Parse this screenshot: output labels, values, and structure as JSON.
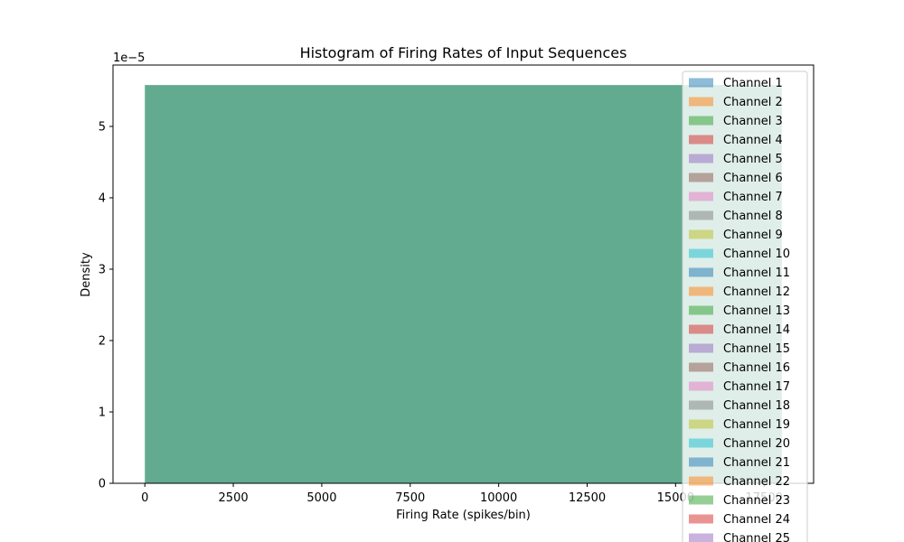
{
  "chart_data": {
    "type": "bar",
    "title": "Histogram of Firing Rates of Input Sequences",
    "xlabel": "Firing Rate (spikes/bin)",
    "ylabel": "Density",
    "y_offset_text": "1e−5",
    "xlim": [
      -900,
      18900
    ],
    "ylim": [
      0,
      5.86
    ],
    "x_ticks": [
      {
        "value": 0,
        "label": "0"
      },
      {
        "value": 2500,
        "label": "2500"
      },
      {
        "value": 5000,
        "label": "5000"
      },
      {
        "value": 7500,
        "label": "7500"
      },
      {
        "value": 10000,
        "label": "10000"
      },
      {
        "value": 12500,
        "label": "12500"
      },
      {
        "value": 15000,
        "label": "15000"
      },
      {
        "value": 17500,
        "label": "17500"
      }
    ],
    "y_ticks": [
      {
        "value": 0,
        "label": "0"
      },
      {
        "value": 1,
        "label": "1"
      },
      {
        "value": 2,
        "label": "2"
      },
      {
        "value": 3,
        "label": "3"
      },
      {
        "value": 4,
        "label": "4"
      },
      {
        "value": 5,
        "label": "5"
      }
    ],
    "bins": [
      {
        "x_start": 0,
        "x_end": 18000,
        "density": 5.58,
        "color": "#62ab91"
      }
    ],
    "legend_placement": "upper-right",
    "legend": [
      {
        "label": "Channel 1",
        "color": "#1f77b4"
      },
      {
        "label": "Channel 2",
        "color": "#ff7f0e"
      },
      {
        "label": "Channel 3",
        "color": "#2ca02c"
      },
      {
        "label": "Channel 4",
        "color": "#d62728"
      },
      {
        "label": "Channel 5",
        "color": "#9467bd"
      },
      {
        "label": "Channel 6",
        "color": "#8c564b"
      },
      {
        "label": "Channel 7",
        "color": "#e377c2"
      },
      {
        "label": "Channel 8",
        "color": "#7f7f7f"
      },
      {
        "label": "Channel 9",
        "color": "#bcbd22"
      },
      {
        "label": "Channel 10",
        "color": "#17becf"
      },
      {
        "label": "Channel 11",
        "color": "#1f77b4"
      },
      {
        "label": "Channel 12",
        "color": "#ff7f0e"
      },
      {
        "label": "Channel 13",
        "color": "#2ca02c"
      },
      {
        "label": "Channel 14",
        "color": "#d62728"
      },
      {
        "label": "Channel 15",
        "color": "#9467bd"
      },
      {
        "label": "Channel 16",
        "color": "#8c564b"
      },
      {
        "label": "Channel 17",
        "color": "#e377c2"
      },
      {
        "label": "Channel 18",
        "color": "#7f7f7f"
      },
      {
        "label": "Channel 19",
        "color": "#bcbd22"
      },
      {
        "label": "Channel 20",
        "color": "#17becf"
      },
      {
        "label": "Channel 21",
        "color": "#1f77b4"
      },
      {
        "label": "Channel 22",
        "color": "#ff7f0e"
      },
      {
        "label": "Channel 23",
        "color": "#2ca02c"
      },
      {
        "label": "Channel 24",
        "color": "#d62728"
      },
      {
        "label": "Channel 25",
        "color": "#9467bd"
      }
    ]
  }
}
